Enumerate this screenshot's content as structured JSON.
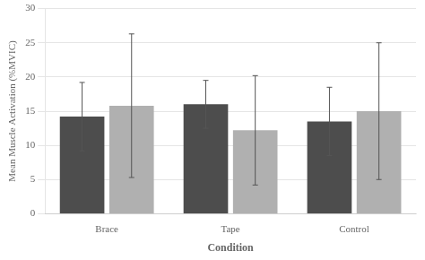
{
  "chart_data": {
    "type": "bar",
    "categories": [
      "Brace",
      "Tape",
      "Control"
    ],
    "series": [
      {
        "color": "#4d4d4d",
        "values": [
          14.2,
          16.0,
          13.5
        ],
        "errors": [
          5.0,
          3.5,
          5.0
        ]
      },
      {
        "color": "#b0b0b0",
        "values": [
          15.8,
          12.2,
          15.0
        ],
        "errors": [
          10.5,
          8.0,
          10.0
        ]
      }
    ],
    "xlabel": "Condition",
    "ylabel": "Mean Muscle Activation (%MVIC)",
    "ylim": [
      0,
      30
    ],
    "yticks": [
      0,
      5,
      10,
      15,
      20,
      25,
      30
    ],
    "grid": true
  }
}
